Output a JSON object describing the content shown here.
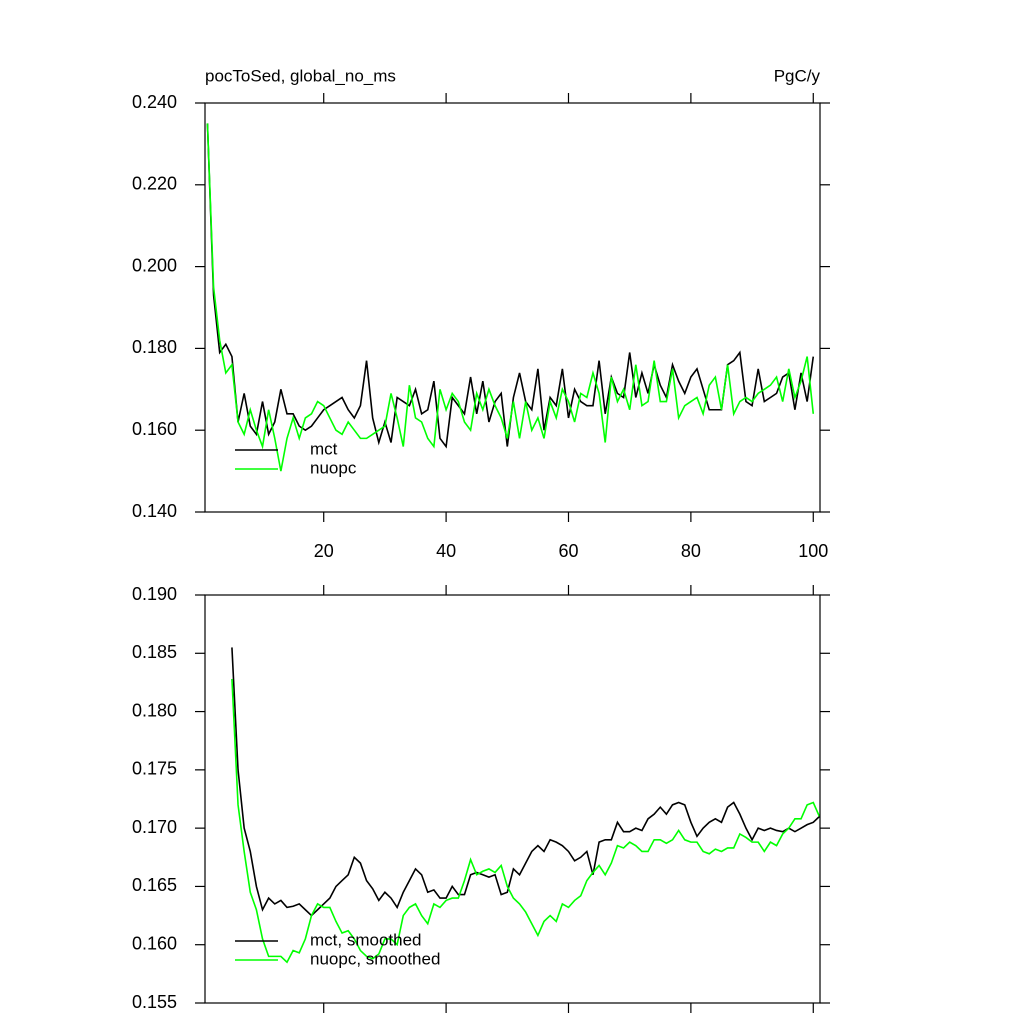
{
  "chart_data": [
    {
      "type": "line",
      "title": "pocToSed, global_no_ms",
      "units": "PgC/y",
      "xlim": [
        0.6,
        101.1
      ],
      "xticks": [
        20,
        40,
        60,
        80,
        100
      ],
      "ylim": [
        0.14,
        0.24
      ],
      "yticks": [
        {
          "value": 0.14,
          "label": "0.140"
        },
        {
          "value": 0.16,
          "label": "0.160"
        },
        {
          "value": 0.18,
          "label": "0.180"
        },
        {
          "value": 0.2,
          "label": "0.200"
        },
        {
          "value": 0.22,
          "label": "0.220"
        },
        {
          "value": 0.24,
          "label": "0.240"
        }
      ],
      "legend": "lower left",
      "x": [
        1,
        2,
        3,
        4,
        5,
        6,
        7,
        8,
        9,
        10,
        11,
        12,
        13,
        14,
        15,
        16,
        17,
        18,
        19,
        20,
        21,
        22,
        23,
        24,
        25,
        26,
        27,
        28,
        29,
        30,
        31,
        32,
        33,
        34,
        35,
        36,
        37,
        38,
        39,
        40,
        41,
        42,
        43,
        44,
        45,
        46,
        47,
        48,
        49,
        50,
        51,
        52,
        53,
        54,
        55,
        56,
        57,
        58,
        59,
        60,
        61,
        62,
        63,
        64,
        65,
        66,
        67,
        68,
        69,
        70,
        71,
        72,
        73,
        74,
        75,
        76,
        77,
        78,
        79,
        80,
        81,
        82,
        83,
        84,
        85,
        86,
        87,
        88,
        89,
        90,
        91,
        92,
        93,
        94,
        95,
        96,
        97,
        98,
        99,
        100
      ],
      "series": [
        {
          "name": "mct",
          "color": "#000000",
          "values": [
            0.235,
            0.193,
            0.179,
            0.181,
            0.178,
            0.162,
            0.169,
            0.161,
            0.159,
            0.167,
            0.159,
            0.162,
            0.17,
            0.164,
            0.164,
            0.161,
            0.16,
            0.161,
            0.163,
            0.165,
            0.166,
            0.167,
            0.168,
            0.165,
            0.163,
            0.166,
            0.177,
            0.163,
            0.157,
            0.162,
            0.157,
            0.168,
            0.167,
            0.166,
            0.17,
            0.164,
            0.165,
            0.172,
            0.158,
            0.156,
            0.168,
            0.166,
            0.164,
            0.173,
            0.164,
            0.172,
            0.162,
            0.167,
            0.169,
            0.156,
            0.168,
            0.174,
            0.167,
            0.165,
            0.175,
            0.16,
            0.168,
            0.166,
            0.175,
            0.163,
            0.17,
            0.167,
            0.166,
            0.166,
            0.177,
            0.164,
            0.173,
            0.169,
            0.168,
            0.179,
            0.168,
            0.174,
            0.169,
            0.176,
            0.171,
            0.168,
            0.176,
            0.172,
            0.169,
            0.173,
            0.175,
            0.17,
            0.165,
            0.165,
            0.165,
            0.176,
            0.177,
            0.179,
            0.167,
            0.166,
            0.175,
            0.167,
            0.168,
            0.169,
            0.173,
            0.174,
            0.165,
            0.174,
            0.167,
            0.178
          ]
        },
        {
          "name": "nuopc",
          "color": "#00ff00",
          "values": [
            0.235,
            0.195,
            0.182,
            0.174,
            0.176,
            0.162,
            0.159,
            0.165,
            0.16,
            0.156,
            0.165,
            0.158,
            0.15,
            0.158,
            0.163,
            0.158,
            0.163,
            0.164,
            0.167,
            0.166,
            0.163,
            0.16,
            0.159,
            0.162,
            0.16,
            0.158,
            0.158,
            0.159,
            0.16,
            0.161,
            0.169,
            0.163,
            0.156,
            0.171,
            0.163,
            0.162,
            0.158,
            0.156,
            0.17,
            0.165,
            0.169,
            0.167,
            0.162,
            0.16,
            0.169,
            0.165,
            0.17,
            0.166,
            0.163,
            0.158,
            0.167,
            0.158,
            0.167,
            0.16,
            0.163,
            0.158,
            0.167,
            0.163,
            0.17,
            0.167,
            0.162,
            0.169,
            0.168,
            0.174,
            0.169,
            0.157,
            0.173,
            0.167,
            0.17,
            0.165,
            0.176,
            0.166,
            0.167,
            0.177,
            0.167,
            0.167,
            0.175,
            0.163,
            0.166,
            0.167,
            0.168,
            0.164,
            0.171,
            0.173,
            0.165,
            0.176,
            0.164,
            0.167,
            0.168,
            0.167,
            0.169,
            0.17,
            0.171,
            0.173,
            0.167,
            0.175,
            0.168,
            0.172,
            0.178,
            0.164
          ]
        }
      ]
    },
    {
      "type": "line",
      "xlim": [
        0.6,
        101.1
      ],
      "xticks": [
        20,
        40,
        60,
        80,
        100
      ],
      "ylim": [
        0.155,
        0.19
      ],
      "yticks": [
        0.155,
        {
          "value": 0.16,
          "label": "0.160"
        },
        0.165,
        {
          "value": 0.17,
          "label": "0.170"
        },
        0.175,
        {
          "value": 0.18,
          "label": "0.180"
        },
        0.185,
        {
          "value": 0.19,
          "label": "0.190"
        }
      ],
      "legend": "lower left",
      "x": [
        5,
        6,
        7,
        8,
        9,
        10,
        11,
        12,
        13,
        14,
        15,
        16,
        17,
        18,
        19,
        20,
        21,
        22,
        23,
        24,
        25,
        26,
        27,
        28,
        29,
        30,
        31,
        32,
        33,
        34,
        35,
        36,
        37,
        38,
        39,
        40,
        41,
        42,
        43,
        44,
        45,
        46,
        47,
        48,
        49,
        50,
        51,
        52,
        53,
        54,
        55,
        56,
        57,
        58,
        59,
        60,
        61,
        62,
        63,
        64,
        65,
        66,
        67,
        68,
        69,
        70,
        71,
        72,
        73,
        74,
        75,
        76,
        77,
        78,
        79,
        80,
        81,
        82,
        83,
        84,
        85,
        86,
        87,
        88,
        89,
        90,
        91,
        92,
        93,
        94,
        95,
        96,
        97,
        98,
        99,
        100,
        101
      ],
      "series": [
        {
          "name": "mct, smoothed",
          "color": "#000000",
          "values": [
            0.1855,
            0.175,
            0.17,
            0.168,
            0.165,
            0.163,
            0.164,
            0.1635,
            0.1638,
            0.1632,
            0.1633,
            0.1635,
            0.163,
            0.1625,
            0.163,
            0.1635,
            0.164,
            0.165,
            0.1655,
            0.166,
            0.1675,
            0.167,
            0.1655,
            0.1648,
            0.1638,
            0.1645,
            0.164,
            0.1632,
            0.1645,
            0.1655,
            0.1665,
            0.166,
            0.1645,
            0.1647,
            0.164,
            0.164,
            0.165,
            0.1643,
            0.1643,
            0.166,
            0.1662,
            0.166,
            0.1658,
            0.166,
            0.1643,
            0.1645,
            0.1665,
            0.166,
            0.167,
            0.168,
            0.1685,
            0.168,
            0.169,
            0.1688,
            0.1685,
            0.168,
            0.1672,
            0.1675,
            0.168,
            0.166,
            0.1688,
            0.169,
            0.169,
            0.1705,
            0.1697,
            0.1697,
            0.17,
            0.1698,
            0.1708,
            0.1712,
            0.1718,
            0.1712,
            0.172,
            0.1722,
            0.172,
            0.1705,
            0.1693,
            0.17,
            0.1705,
            0.1708,
            0.1705,
            0.1718,
            0.1722,
            0.1712,
            0.17,
            0.169,
            0.17,
            0.1698,
            0.17,
            0.1698,
            0.1697,
            0.17,
            0.1697,
            0.17,
            0.1703,
            0.1705,
            0.171
          ]
        },
        {
          "name": "nuopc, smoothed",
          "color": "#00ff00",
          "values": [
            0.1828,
            0.172,
            0.168,
            0.1645,
            0.163,
            0.1605,
            0.159,
            0.159,
            0.159,
            0.1585,
            0.1595,
            0.1593,
            0.1605,
            0.1625,
            0.1635,
            0.1632,
            0.1632,
            0.162,
            0.161,
            0.1612,
            0.1605,
            0.1595,
            0.159,
            0.1588,
            0.1592,
            0.1605,
            0.1605,
            0.16,
            0.1625,
            0.1632,
            0.1635,
            0.1625,
            0.1618,
            0.1635,
            0.1632,
            0.1638,
            0.164,
            0.164,
            0.1655,
            0.1673,
            0.166,
            0.1663,
            0.1665,
            0.1662,
            0.1668,
            0.165,
            0.164,
            0.1635,
            0.1628,
            0.1618,
            0.1608,
            0.162,
            0.1625,
            0.162,
            0.1635,
            0.1632,
            0.1638,
            0.1642,
            0.1655,
            0.1662,
            0.1668,
            0.166,
            0.167,
            0.1685,
            0.1683,
            0.1688,
            0.1685,
            0.168,
            0.168,
            0.169,
            0.169,
            0.1687,
            0.169,
            0.1698,
            0.169,
            0.1688,
            0.1688,
            0.168,
            0.1678,
            0.1682,
            0.168,
            0.1683,
            0.1683,
            0.1695,
            0.1692,
            0.1688,
            0.1688,
            0.168,
            0.1688,
            0.1685,
            0.1695,
            0.17,
            0.1708,
            0.1708,
            0.172,
            0.1722,
            0.171
          ]
        }
      ]
    }
  ]
}
